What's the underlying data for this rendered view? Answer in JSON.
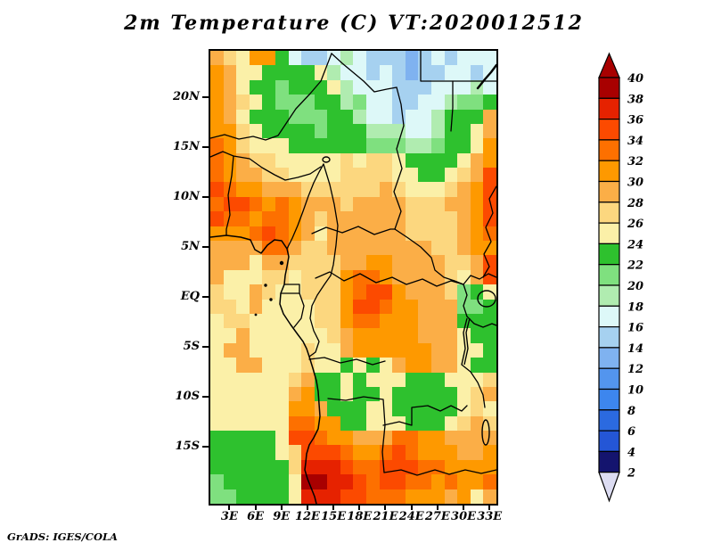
{
  "title": "2m  Temperature  (C)  VT:2020012512",
  "credit": "GrADS: IGES/COLA",
  "axes": {
    "lon_range": [
      0.8,
      33.8
    ],
    "lat_range": [
      -20.7,
      24.6
    ],
    "x_ticks": [
      {
        "label": "3E",
        "lon": 3
      },
      {
        "label": "6E",
        "lon": 6
      },
      {
        "label": "9E",
        "lon": 9
      },
      {
        "label": "12E",
        "lon": 12
      },
      {
        "label": "15E",
        "lon": 15
      },
      {
        "label": "18E",
        "lon": 18
      },
      {
        "label": "21E",
        "lon": 21
      },
      {
        "label": "24E",
        "lon": 24
      },
      {
        "label": "27E",
        "lon": 27
      },
      {
        "label": "30E",
        "lon": 30
      },
      {
        "label": "33E",
        "lon": 33
      }
    ],
    "y_ticks": [
      {
        "label": "20N",
        "lat": 20
      },
      {
        "label": "15N",
        "lat": 15
      },
      {
        "label": "10N",
        "lat": 10
      },
      {
        "label": "5N",
        "lat": 5
      },
      {
        "label": "EQ",
        "lat": 0
      },
      {
        "label": "5S",
        "lat": -5
      },
      {
        "label": "10S",
        "lat": -10
      },
      {
        "label": "15S",
        "lat": -15
      }
    ]
  },
  "colorbar": {
    "tick_labels": [
      "40",
      "38",
      "36",
      "34",
      "32",
      "30",
      "28",
      "26",
      "24",
      "22",
      "20",
      "18",
      "16",
      "14",
      "12",
      "10",
      "8",
      "6",
      "4",
      "2"
    ],
    "segment_colors_top_to_bottom": [
      "#a80000",
      "#e62200",
      "#fc4a00",
      "#fd7000",
      "#fe9900",
      "#fbae47",
      "#fcd77f",
      "#fbf0a8",
      "#2ec12e",
      "#7fe07f",
      "#b0ecb0",
      "#ddf8f8",
      "#a6d1f0",
      "#7fb2f0",
      "#5395ee",
      "#3d86ee",
      "#2b6ae0",
      "#2456d6",
      "#14146e"
    ],
    "over_arrow_color": "#a80000",
    "under_arrow_color": "#dcdcf2"
  },
  "chart_data": {
    "type": "heatmap",
    "title": "2m  Temperature  (C)  VT:2020012512",
    "variable": "2m Temperature",
    "units": "C",
    "valid_time": "2020012512",
    "lon_range": [
      0.8,
      33.8
    ],
    "lat_range": [
      -20.7,
      24.6
    ],
    "contour_levels_c": [
      2,
      4,
      6,
      8,
      10,
      12,
      14,
      16,
      18,
      20,
      22,
      24,
      26,
      28,
      30,
      32,
      34,
      36,
      38,
      40
    ],
    "palette": {
      "B": {
        "temp_range_c": "12-14",
        "color": "#7fb2f0"
      },
      "C": {
        "temp_range_c": "14-16",
        "color": "#a6d1f0"
      },
      "D": {
        "temp_range_c": "16-18",
        "color": "#ddf8f8"
      },
      "E": {
        "temp_range_c": "18-20",
        "color": "#b0ecb0"
      },
      "F": {
        "temp_range_c": "20-22",
        "color": "#7fe07f"
      },
      "G": {
        "temp_range_c": "22-24",
        "color": "#2ec12e"
      },
      "H": {
        "temp_range_c": "24-26",
        "color": "#fbf0a8"
      },
      "I": {
        "temp_range_c": "26-28",
        "color": "#fcd77f"
      },
      "J": {
        "temp_range_c": "28-30",
        "color": "#fbae47"
      },
      "K": {
        "temp_range_c": "30-32",
        "color": "#fe9900"
      },
      "L": {
        "temp_range_c": "32-34",
        "color": "#fd7000"
      },
      "M": {
        "temp_range_c": "34-36",
        "color": "#fc4a00"
      },
      "N": {
        "temp_range_c": "36-38",
        "color": "#e62200"
      },
      "O": {
        "temp_range_c": "38-40",
        "color": "#a80000"
      }
    },
    "grid_shape_rows_cols": [
      31,
      22
    ],
    "grid_note": "rows north to south across lat_range, columns west to east across lon_range; letter = temperature bin",
    "grid_code_rows_north_to_south": [
      "JIHKKGDCCDEDCCCBCDCDDD",
      "KJHHGGGGHEDDCDCBCCDDCD",
      "KJHGGFGGGHEDDDCCCDDDED",
      "KJIHGFFFGGEFDDCCDDEFFG",
      "KJHGGGFFFGGEDDCDDEGGGJ",
      "KKIHGGGGFGGGEEEDDEGGHJ",
      "LKIHHHGGGGGGFFFEEFGGHK",
      "LKJIIHHHHHIHIIHGGGGHJK",
      "LKJJIIHHHHIIIIHHGGHIJM",
      "MLKKJJJIIIIIIJIHHHIJKM",
      "LMMLKLKJJJIJJJJIIIJJKM",
      "MLLKLLKJIJJJJJJIIIIJKM",
      "KKKLMLKJHJJJJJJIIIIJKL",
      "JJJJLLJIIJJJJJJJJIIJKK",
      "JJJHJJIIIIJJKKJJJJIIJM",
      "JHHHIIHIIIKLLKJJJJIHJM",
      "IHHJIHHIIIKLMMKJJJIFGH",
      "IIHJHHHHIIKMMLKKJJJFFG",
      "HIIHHHHHIIKLLKKKJJJGGG",
      "HHJHHHHHHIJKKKKKJJJHGG",
      "HJJHHHHIHHJKKKKKKJJHHG",
      "HHJJHHHIHHGHGHJKKJJHGG",
      "HHHHHHIJGGHGHHHGGGHHHI",
      "HHHHHHJKGGHGGHGGGGGHIJ",
      "HHHHHHKKJGGGHHGGGGGHIH",
      "HHHHHHLLKKGGHHHGGGHIJI",
      "GGGGGHMMLKKJJJLLKKJJJJ",
      "GGGGGHIMMMLKKLMLKKKJJK",
      "GGGGGGINNNMLLMMMLLKKKK",
      "FGGGGGHOONNMLMMLLKLKKL",
      "FFGGGGHNNNMMLLLKKKJKHJ"
    ]
  }
}
